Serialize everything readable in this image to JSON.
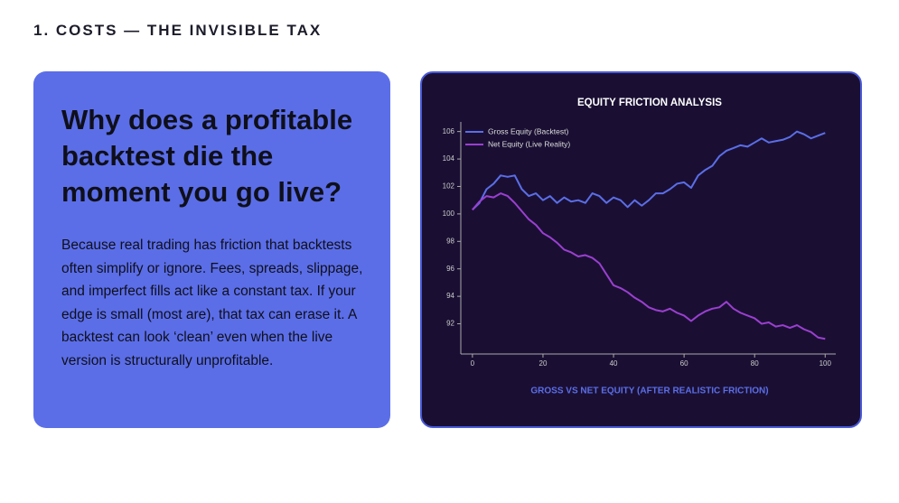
{
  "header": {
    "title": "1. COSTS — THE INVISIBLE TAX"
  },
  "card": {
    "title": "Why does a profitable backtest die the moment you go live?",
    "body": "Because real trading has friction that backtests often simplify or ignore. Fees, spreads, slippage, and imperfect fills act like a constant tax. If your edge is small (most are), that tax can erase it. A backtest can look ‘clean’ even when the live version is structurally unprofitable."
  },
  "chart_data": {
    "type": "line",
    "title": "EQUITY FRICTION ANALYSIS",
    "x_label": "GROSS VS NET EQUITY (AFTER REALISTIC FRICTION)",
    "x": [
      0,
      2,
      4,
      6,
      8,
      10,
      12,
      14,
      16,
      18,
      20,
      22,
      24,
      26,
      28,
      30,
      32,
      34,
      36,
      38,
      40,
      42,
      44,
      46,
      48,
      50,
      52,
      54,
      56,
      58,
      60,
      62,
      64,
      66,
      68,
      70,
      72,
      74,
      76,
      78,
      80,
      82,
      84,
      86,
      88,
      90,
      92,
      94,
      96,
      98,
      100
    ],
    "series": [
      {
        "name": "Gross Equity (Backtest)",
        "color": "#5b6ee8",
        "values": [
          100.3,
          100.8,
          101.8,
          102.2,
          102.8,
          102.7,
          102.8,
          101.8,
          101.3,
          101.5,
          101.0,
          101.3,
          100.8,
          101.2,
          100.9,
          101.0,
          100.8,
          101.5,
          101.3,
          100.8,
          101.2,
          101.0,
          100.5,
          101.0,
          100.6,
          101.0,
          101.5,
          101.5,
          101.8,
          102.2,
          102.3,
          101.9,
          102.8,
          103.2,
          103.5,
          104.2,
          104.6,
          104.8,
          105.0,
          104.9,
          105.2,
          105.5,
          105.2,
          105.3,
          105.4,
          105.6,
          106.0,
          105.8,
          105.5,
          105.7,
          105.9
        ]
      },
      {
        "name": "Net Equity (Live Reality)",
        "color": "#9b3fd0",
        "values": [
          100.3,
          100.9,
          101.3,
          101.2,
          101.5,
          101.3,
          100.8,
          100.2,
          99.6,
          99.2,
          98.6,
          98.3,
          97.9,
          97.4,
          97.2,
          96.9,
          97.0,
          96.8,
          96.4,
          95.6,
          94.8,
          94.6,
          94.3,
          93.9,
          93.6,
          93.2,
          93.0,
          92.9,
          93.1,
          92.8,
          92.6,
          92.2,
          92.6,
          92.9,
          93.1,
          93.2,
          93.6,
          93.1,
          92.8,
          92.6,
          92.4,
          92.0,
          92.1,
          91.8,
          91.9,
          91.7,
          91.9,
          91.6,
          91.4,
          91.0,
          90.9
        ]
      }
    ],
    "xlim": [
      -3.3,
      103
    ],
    "xticks": [
      0,
      20,
      40,
      60,
      80,
      100
    ],
    "ylim": [
      89.8,
      106.7
    ],
    "yticks": [
      92,
      94,
      96,
      98,
      100,
      102,
      104,
      106
    ],
    "grid": false,
    "legend": "top-left"
  }
}
